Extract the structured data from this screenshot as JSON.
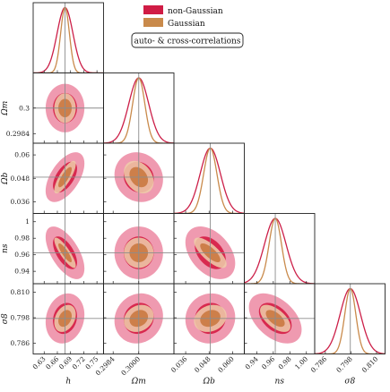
{
  "chart_data": {
    "type": "corner",
    "parameters": [
      {
        "key": "h",
        "label": "h",
        "truth": 0.6774,
        "range": [
          0.605,
          0.765
        ],
        "ticks": [
          "0.63",
          "0.66",
          "0.69",
          "0.72",
          "0.75"
        ],
        "tick_values": [
          0.63,
          0.66,
          0.69,
          0.72,
          0.75
        ]
      },
      {
        "key": "Om",
        "label": "Ωm",
        "truth": 0.3,
        "range": [
          0.2978,
          0.3022
        ],
        "ticks": [
          "0.2984",
          "0.3000"
        ],
        "tick_values": [
          0.2984,
          0.3
        ],
        "row_ticks": [
          "0.2984",
          "0.3"
        ],
        "row_tick_values": [
          0.2984,
          0.3
        ]
      },
      {
        "key": "Ob",
        "label": "Ωb",
        "truth": 0.0486,
        "range": [
          0.03,
          0.066
        ],
        "ticks": [
          "0.036",
          "0.048",
          "0.060"
        ],
        "tick_values": [
          0.036,
          0.048,
          0.06
        ],
        "row_ticks": [
          "0.036",
          "0.048",
          "0.06"
        ],
        "row_tick_values": [
          0.036,
          0.048,
          0.06
        ]
      },
      {
        "key": "ns",
        "label": "ns",
        "truth": 0.9624,
        "range": [
          0.925,
          1.01
        ],
        "ticks": [
          "0.94",
          "0.96",
          "0.98",
          "1.00"
        ],
        "tick_values": [
          0.94,
          0.96,
          0.98,
          1.0
        ],
        "row_ticks": [
          "0.94",
          "0.96",
          "0.98",
          "1"
        ],
        "row_tick_values": [
          0.94,
          0.96,
          0.98,
          1.0
        ]
      },
      {
        "key": "s8",
        "label": "σ8",
        "truth": 0.7977,
        "range": [
          0.781,
          0.814
        ],
        "ticks": [
          "0.786",
          "0.798",
          "0.810"
        ],
        "tick_values": [
          0.786,
          0.798,
          0.81
        ],
        "row_ticks": [
          "0.786",
          "0.798",
          "0.810"
        ],
        "row_tick_values": [
          0.786,
          0.798,
          0.81
        ]
      }
    ],
    "series": [
      {
        "name": "non-Gaussian",
        "color": "#cc1f48",
        "fill_inner": "#d8294f",
        "fill_outer": "#ef9ab0",
        "sigma": {
          "h": 0.018,
          "Om": 0.00062,
          "Ob": 0.0052,
          "ns": 0.013,
          "s8": 0.0048
        },
        "rho": {
          "h|Ob": 0.55,
          "h|ns": -0.6,
          "h|s8": 0.15,
          "Om|Ob": -0.1,
          "Om|ns": 0.0,
          "Om|s8": 0.1,
          "Ob|ns": -0.4,
          "Ob|s8": 0.05,
          "ns|s8": -0.45
        }
      },
      {
        "name": "Gaussian",
        "color": "#c98a4b",
        "fill_inner": "#c8763c",
        "fill_outer": "#efcfaa",
        "sigma": {
          "h": 0.01,
          "Om": 0.00038,
          "Ob": 0.0034,
          "ns": 0.0075,
          "s8": 0.0026
        },
        "rho": {
          "h|Ob": 0.8,
          "h|ns": -0.85,
          "h|s8": 0.3,
          "Om|Ob": -0.3,
          "Om|ns": 0.0,
          "Om|s8": 0.2,
          "Ob|ns": -0.75,
          "Ob|s8": 0.2,
          "ns|s8": -0.6
        }
      }
    ],
    "annotation": "auto- & cross-correlations",
    "legend_placement": "top-right",
    "grid": false
  },
  "colors": {
    "truth_line": "#8c8c8c",
    "frame": "#222222"
  }
}
